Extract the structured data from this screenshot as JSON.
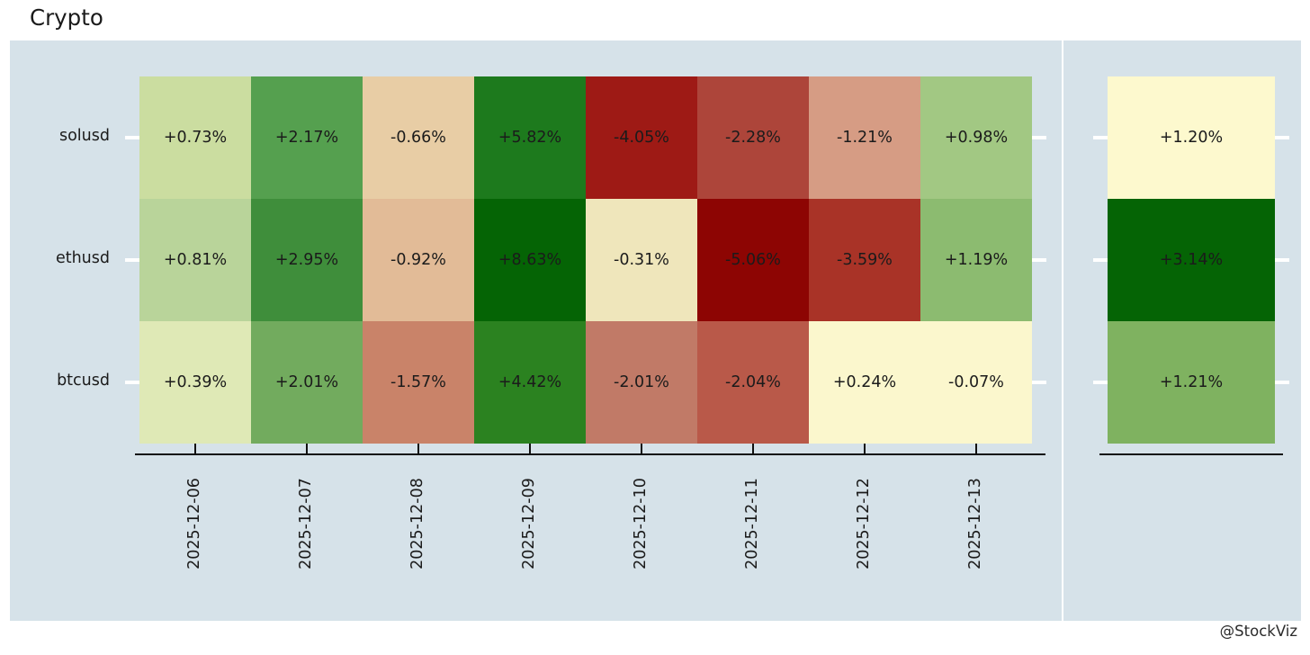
{
  "title": "Crypto",
  "watermark": "@StockViz",
  "chart_data": {
    "type": "heatmap",
    "title": "Crypto",
    "colormap": "RdYlGn",
    "panel_background": "#d6e2e9",
    "legend_position": "none",
    "grid": "off",
    "rows": [
      "solusd",
      "ethusd",
      "btcusd"
    ],
    "columns": [
      "2025-12-06",
      "2025-12-07",
      "2025-12-08",
      "2025-12-09",
      "2025-12-10",
      "2025-12-11",
      "2025-12-12",
      "2025-12-13"
    ],
    "values_pct": [
      [
        0.73,
        2.17,
        -0.66,
        5.82,
        -4.05,
        -2.28,
        -1.21,
        0.98
      ],
      [
        0.81,
        2.95,
        -0.92,
        8.63,
        -0.31,
        -5.06,
        -3.59,
        1.19
      ],
      [
        0.39,
        2.01,
        -1.57,
        4.42,
        -2.01,
        -2.04,
        0.24,
        -0.07
      ]
    ],
    "labels": [
      [
        "+0.73%",
        "+2.17%",
        "-0.66%",
        "+5.82%",
        "-4.05%",
        "-2.28%",
        "-1.21%",
        "+0.98%"
      ],
      [
        "+0.81%",
        "+2.95%",
        "-0.92%",
        "+8.63%",
        "-0.31%",
        "-5.06%",
        "-3.59%",
        "+1.19%"
      ],
      [
        "+0.39%",
        "+2.01%",
        "-1.57%",
        "+4.42%",
        "-2.01%",
        "-2.04%",
        "+0.24%",
        "-0.07%"
      ]
    ],
    "cell_colors": [
      [
        "#cbdda0",
        "#55a04f",
        "#e8cda5",
        "#1d7a1d",
        "#9e1a15",
        "#ad453a",
        "#d69c84",
        "#a2c883"
      ],
      [
        "#b9d49a",
        "#3f8e3b",
        "#e2bb97",
        "#056405",
        "#efe6bb",
        "#8d0503",
        "#a93327",
        "#8cbb70"
      ],
      [
        "#dfe9b6",
        "#72ab5e",
        "#c98369",
        "#2b8220",
        "#c17a67",
        "#b95949",
        "#fbf7cd",
        "#fbf7cd"
      ]
    ],
    "summary_column": {
      "values_pct": [
        1.2,
        3.14,
        1.21
      ],
      "labels": [
        "+1.20%",
        "+3.14%",
        "+1.21%"
      ],
      "colors": [
        "#fdf9ce",
        "#056405",
        "#7fb260"
      ]
    }
  }
}
